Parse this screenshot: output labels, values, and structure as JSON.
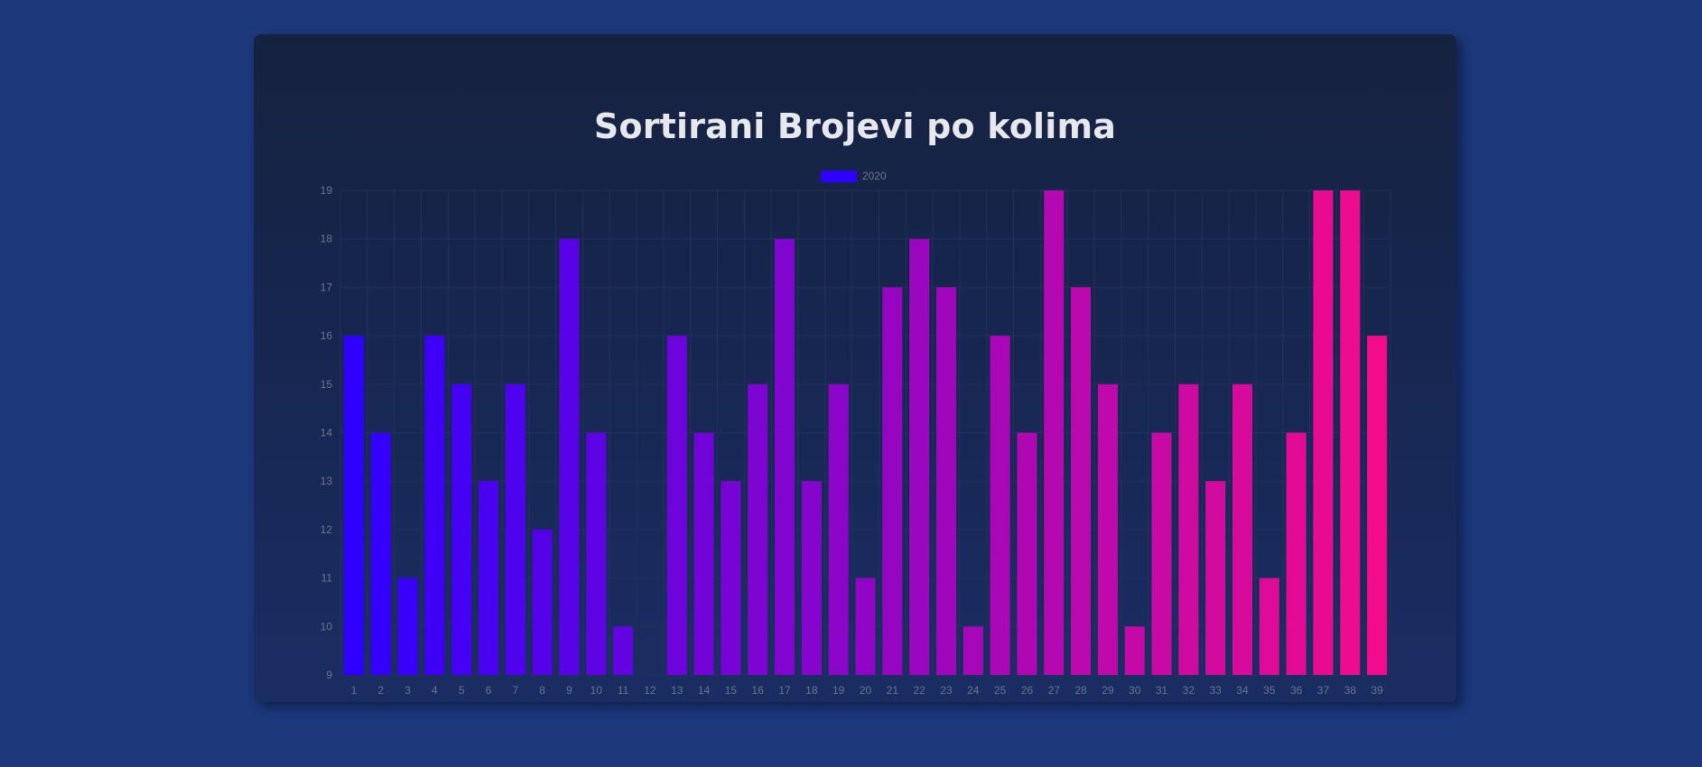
{
  "page": {
    "title": "Sortirani Brojevi po kolima"
  },
  "colors": {
    "background": "#1c387a",
    "card_top": "#15223f",
    "card_bottom": "#1a2d63",
    "grid": "#22305a",
    "tick_text": "#6c7488",
    "title_text": "#e6e8ee",
    "bar_start": "#2f00ff",
    "bar_end": "#f20c8c"
  },
  "chart_data": {
    "type": "bar",
    "title": "Sortirani Brojevi po kolima",
    "xlabel": "",
    "ylabel": "",
    "categories": [
      "1",
      "2",
      "3",
      "4",
      "5",
      "6",
      "7",
      "8",
      "9",
      "10",
      "11",
      "12",
      "13",
      "14",
      "15",
      "16",
      "17",
      "18",
      "19",
      "20",
      "21",
      "22",
      "23",
      "24",
      "25",
      "26",
      "27",
      "28",
      "29",
      "30",
      "31",
      "32",
      "33",
      "34",
      "35",
      "36",
      "37",
      "38",
      "39"
    ],
    "series": [
      {
        "name": "2020",
        "values": [
          16,
          14,
          11,
          16,
          15,
          13,
          15,
          12,
          18,
          14,
          10,
          9,
          16,
          14,
          13,
          15,
          18,
          13,
          15,
          11,
          17,
          18,
          17,
          10,
          16,
          14,
          19,
          17,
          15,
          10,
          14,
          15,
          13,
          15,
          11,
          14,
          19,
          19,
          16
        ]
      }
    ],
    "ylim": [
      9,
      19
    ],
    "y_ticks": [
      9,
      10,
      11,
      12,
      13,
      14,
      15,
      16,
      17,
      18,
      19
    ],
    "grid": true,
    "legend_position": "top-center",
    "bar_colors": "gradient from blue to pink across categories"
  }
}
